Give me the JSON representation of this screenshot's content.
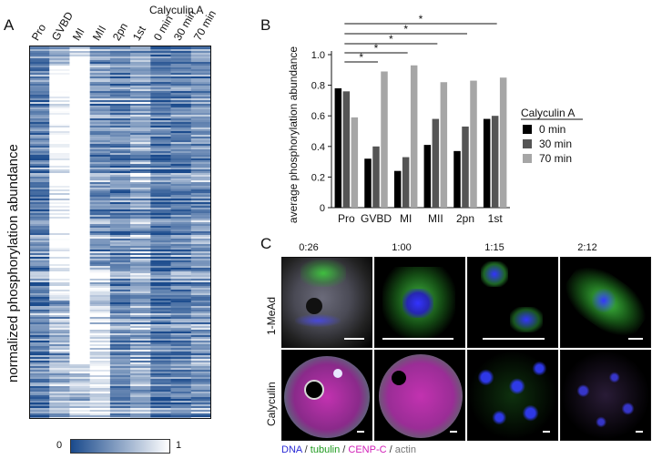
{
  "panelA": {
    "letter": "A",
    "calyculin_header": "Calyculin A",
    "columns": [
      "Pro",
      "GVBD",
      "MI",
      "MII",
      "2pn",
      "1st",
      "0 min",
      "30 min",
      "70 min"
    ],
    "ylabel": "normalized phosphorylation abundance",
    "colorbar_min": "0",
    "colorbar_max": "1",
    "colors": {
      "high": "#1a4a8c",
      "low": "#ffffff"
    }
  },
  "panelB": {
    "letter": "B",
    "legend_title": "Calyculin A",
    "significance": [
      "*",
      "*",
      "*",
      "*",
      "*"
    ]
  },
  "chart_data": {
    "type": "bar",
    "categories": [
      "Pro",
      "GVBD",
      "MI",
      "MII",
      "2pn",
      "1st"
    ],
    "series": [
      {
        "name": "0 min",
        "values": [
          0.78,
          0.32,
          0.24,
          0.41,
          0.37,
          0.58
        ],
        "color": "#000000"
      },
      {
        "name": "30 min",
        "values": [
          0.76,
          0.4,
          0.33,
          0.58,
          0.53,
          0.6
        ],
        "color": "#555555"
      },
      {
        "name": "70 min",
        "values": [
          0.59,
          0.89,
          0.93,
          0.82,
          0.83,
          0.85
        ],
        "color": "#a6a6a6"
      }
    ],
    "xlabel": "",
    "ylabel": "average phosphorylation abundance",
    "ylim": [
      0,
      1.0
    ],
    "yticks": [
      "0",
      "0.2",
      "0.4",
      "0.6",
      "0.8",
      "1.0"
    ],
    "legend_title": "Calyculin A",
    "legend_position": "right",
    "grid": false
  },
  "panelC": {
    "letter": "C",
    "times": [
      "0:26",
      "1:00",
      "1:15",
      "2:12"
    ],
    "rows": [
      "1-MeAd",
      "Calyculin"
    ],
    "caption_parts": [
      {
        "text": "DNA",
        "color": "#2b2bd6"
      },
      {
        "text": " / ",
        "color": "#333333"
      },
      {
        "text": "tubulin",
        "color": "#1d9a1d"
      },
      {
        "text": " / ",
        "color": "#333333"
      },
      {
        "text": "CENP-C",
        "color": "#d21fb8"
      },
      {
        "text": " / ",
        "color": "#333333"
      },
      {
        "text": "actin",
        "color": "#777777"
      }
    ]
  }
}
